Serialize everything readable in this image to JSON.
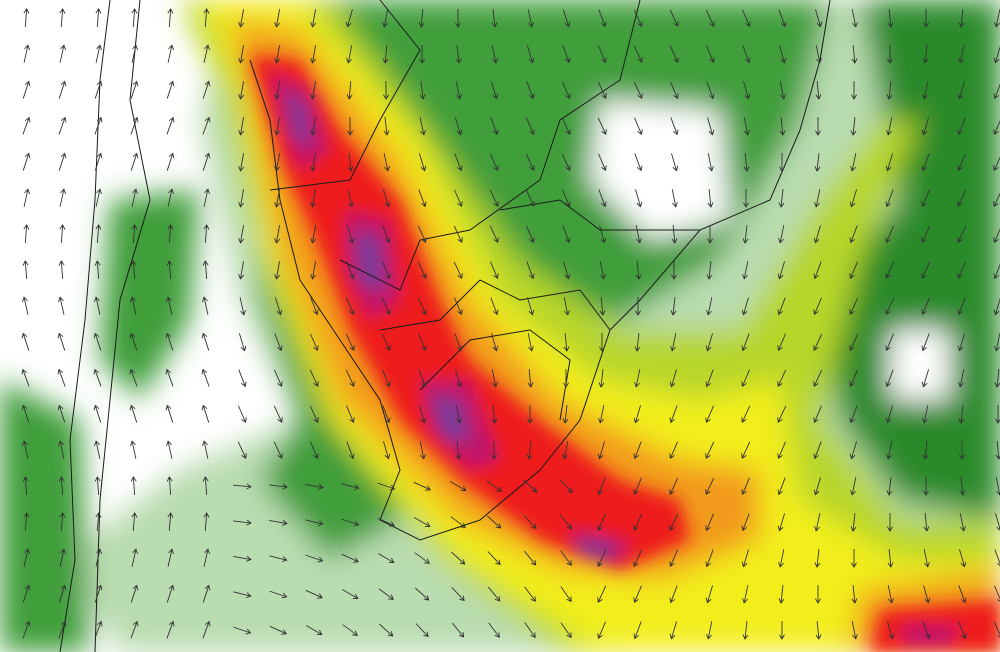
{
  "map": {
    "field_colors": {
      "background": "#ffffff",
      "light_green": "#b9dcb0",
      "green": "#3f9e3a",
      "dark_green": "#2a8a2c",
      "yellow_green": "#b7d62a",
      "yellow": "#f2ee1c",
      "orange": "#f29a1c",
      "red": "#ee1c1c",
      "magenta": "#c0186a",
      "purple": "#7a3a9a"
    },
    "border_color": "#1a1a1a",
    "arrow_color": "#333333",
    "icons": [
      "wind-vector-icon"
    ]
  }
}
